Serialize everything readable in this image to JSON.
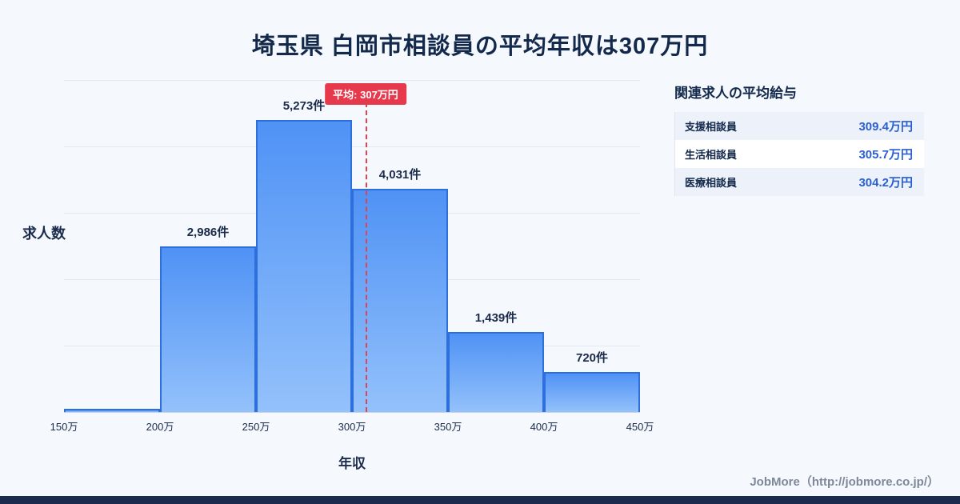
{
  "page": {
    "title": "埼玉県 白岡市相談員の平均年収は307万円",
    "footer": "JobMore（http://jobmore.co.jp/）"
  },
  "chart_data": {
    "type": "bar",
    "title": "埼玉県 白岡市相談員の平均年収は307万円",
    "xlabel": "年収",
    "ylabel": "求人数",
    "bin_edges": [
      "150万",
      "200万",
      "250万",
      "300万",
      "350万",
      "400万",
      "450万"
    ],
    "values": [
      60,
      2986,
      5273,
      4031,
      1439,
      720
    ],
    "value_labels": [
      "",
      "2,986件",
      "5,273件",
      "4,031件",
      "1,439件",
      "720件"
    ],
    "ylim": [
      0,
      6000
    ],
    "grid": true,
    "legend": "none",
    "mean_line": {
      "value": 307,
      "x_range": [
        150,
        450
      ],
      "label": "平均: 307万円",
      "color": "#e6394b"
    },
    "bar_color_top": "#4f92f5",
    "bar_color_bottom": "#93c1fb",
    "bar_border_color": "#2e6fde"
  },
  "salary_panel": {
    "title": "関連求人の平均給与",
    "rows": [
      {
        "label": "支援相談員",
        "value": "309.4万円"
      },
      {
        "label": "生活相談員",
        "value": "305.7万円"
      },
      {
        "label": "医療相談員",
        "value": "304.2万円"
      }
    ]
  }
}
